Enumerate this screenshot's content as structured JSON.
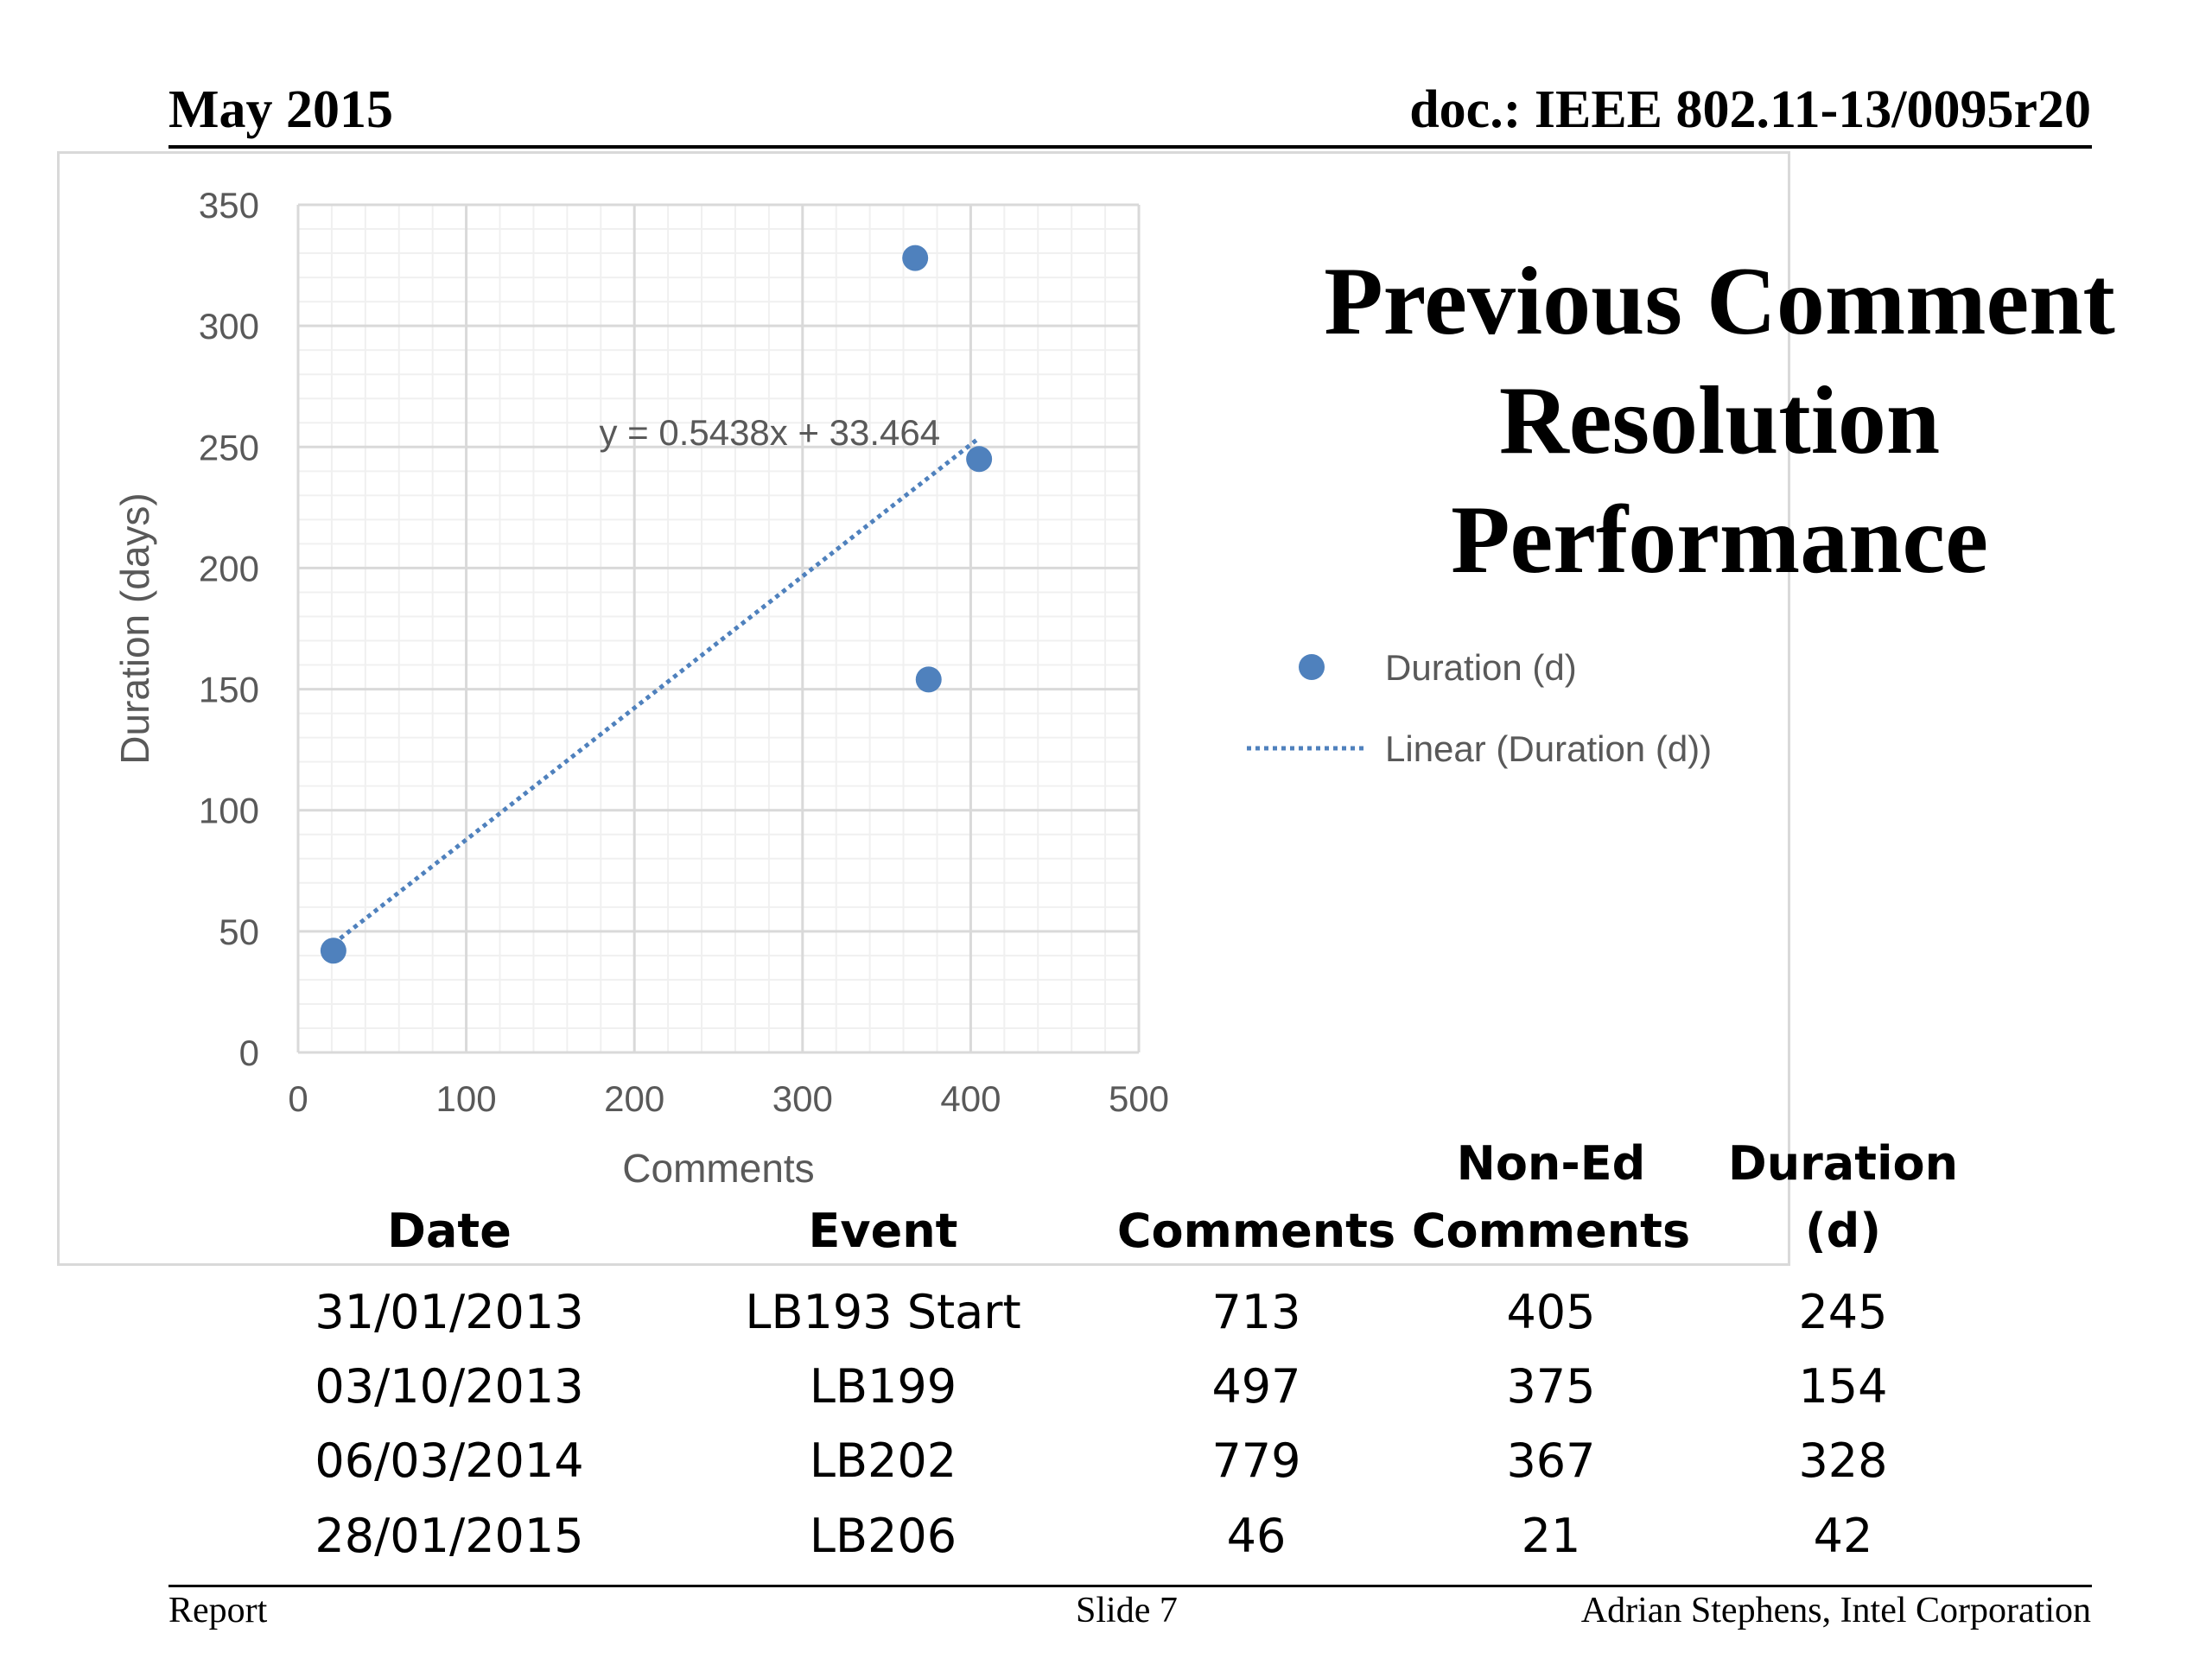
{
  "header": {
    "date": "May 2015",
    "doc": "doc.: IEEE 802.11-13/0095r20"
  },
  "slide_title": [
    "Previous Comment",
    "Resolution",
    "Performance"
  ],
  "chart_data": {
    "type": "scatter",
    "xlabel": "Comments",
    "ylabel": "Duration (days)",
    "xlim": [
      0,
      500
    ],
    "ylim": [
      0,
      350
    ],
    "x_ticks": [
      0,
      100,
      200,
      300,
      400,
      500
    ],
    "y_ticks": [
      0,
      50,
      100,
      150,
      200,
      250,
      300,
      350
    ],
    "grid": true,
    "legend_position": "right",
    "series": [
      {
        "name": "Duration (d)",
        "color": "#4F81BD",
        "points": [
          {
            "x": 405,
            "y": 245
          },
          {
            "x": 375,
            "y": 154
          },
          {
            "x": 367,
            "y": 328
          },
          {
            "x": 21,
            "y": 42
          }
        ]
      }
    ],
    "trendline": {
      "name": "Linear (Duration (d))",
      "slope": 0.5438,
      "intercept": 33.464,
      "x_range": [
        21,
        405
      ],
      "equation_label": "y = 0.5438x + 33.464",
      "style": "dotted",
      "color": "#4F81BD"
    }
  },
  "table": {
    "headers": [
      [
        "Date"
      ],
      [
        "Event"
      ],
      [
        "Comments"
      ],
      [
        "Non-Ed",
        "Comments"
      ],
      [
        "Duration",
        "(d)"
      ]
    ],
    "rows": [
      [
        "31/01/2013",
        "LB193 Start",
        "713",
        "405",
        "245"
      ],
      [
        "03/10/2013",
        "LB199",
        "497",
        "375",
        "154"
      ],
      [
        "06/03/2014",
        "LB202",
        "779",
        "367",
        "328"
      ],
      [
        "28/01/2015",
        "LB206",
        "46",
        "21",
        "42"
      ]
    ]
  },
  "footer": {
    "left": "Report",
    "center": "Slide 7",
    "right": "Adrian Stephens, Intel Corporation"
  }
}
